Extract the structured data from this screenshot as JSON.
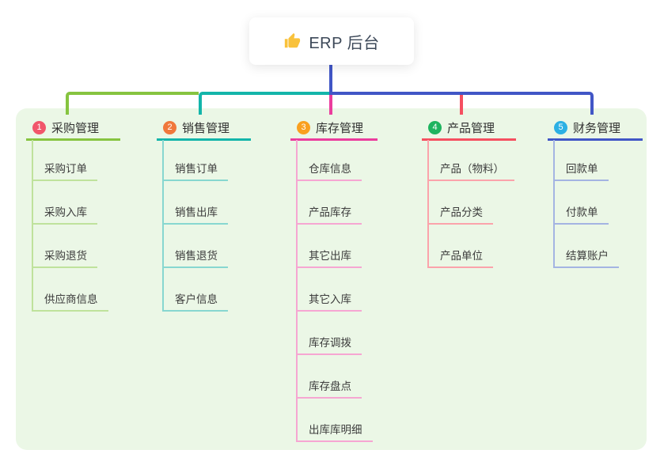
{
  "root": {
    "label": "ERP 后台",
    "icon": "thumbs-up-icon"
  },
  "branches": [
    {
      "index": "1",
      "label": "采购管理",
      "badge_color": "#f1566b",
      "line_color": "#86c440",
      "child_line_color": "#bfe29c",
      "children": [
        "采购订单",
        "采购入库",
        "采购退货",
        "供应商信息"
      ]
    },
    {
      "index": "2",
      "label": "销售管理",
      "badge_color": "#f0783c",
      "line_color": "#13b5aa",
      "child_line_color": "#87d7d0",
      "children": [
        "销售订单",
        "销售出库",
        "销售退货",
        "客户信息"
      ]
    },
    {
      "index": "3",
      "label": "库存管理",
      "badge_color": "#f9a01f",
      "line_color": "#eb3d9d",
      "child_line_color": "#f6a6d2",
      "children": [
        "仓库信息",
        "产品库存",
        "其它出库",
        "其它入库",
        "库存调拨",
        "库存盘点",
        "出库库明细"
      ]
    },
    {
      "index": "4",
      "label": "产品管理",
      "badge_color": "#1eb45f",
      "line_color": "#f54f60",
      "child_line_color": "#fba3ab",
      "children": [
        "产品（物料）",
        "产品分类",
        "产品单位"
      ]
    },
    {
      "index": "5",
      "label": "财务管理",
      "badge_color": "#2cb0e4",
      "line_color": "#4156c6",
      "child_line_color": "#a4b4e2",
      "children": [
        "回款单",
        "付款单",
        "结算账户"
      ]
    }
  ],
  "colors": {
    "panel_bg": "#ebf7e6",
    "root_line": "#4156c6",
    "thumb_yellow": "#f9c23c"
  }
}
